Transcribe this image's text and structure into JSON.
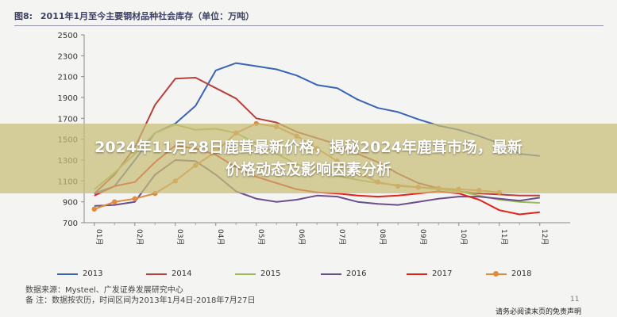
{
  "header": {
    "figure_label": "图8:",
    "figure_title": "2011年1月至今主要钢材品种社会库存（单位：万吨）"
  },
  "banner": {
    "line1": "2024年11月28日鹿茸最新价格，揭秘2024年鹿茸市场，最新",
    "line2": "价格动态及影响因素分析"
  },
  "chart_data": {
    "type": "line",
    "ylim": [
      700,
      2500
    ],
    "yticks": [
      "700",
      "900",
      "1100",
      "1300",
      "1500",
      "1700",
      "1900",
      "2100",
      "2300",
      "2500"
    ],
    "x_labels": [
      "01月",
      "02月",
      "03月",
      "04月",
      "05月",
      "06月",
      "07月",
      "08月",
      "09月",
      "10月",
      "11月",
      "12月"
    ],
    "series": [
      {
        "name": "2013",
        "color": "#3a64b8",
        "marker": false,
        "x": [
          1,
          1.5,
          2,
          2.5,
          3,
          3.5,
          4,
          4.5,
          5,
          5.5,
          6,
          6.5,
          7,
          7.5,
          8,
          8.5,
          9,
          9.5,
          10,
          10.5,
          11,
          11.5,
          12
        ],
        "values": [
          980,
          1050,
          1300,
          1560,
          1650,
          1820,
          2160,
          2230,
          2200,
          2170,
          2110,
          2020,
          1990,
          1880,
          1800,
          1760,
          1690,
          1630,
          1590,
          1530,
          1460,
          1360,
          1340
        ]
      },
      {
        "name": "2014",
        "color": "#b5413a",
        "marker": false,
        "x": [
          1,
          1.5,
          2,
          2.5,
          3,
          3.5,
          4,
          4.5,
          5,
          5.5,
          6,
          6.5,
          7,
          7.5,
          8,
          8.5,
          9,
          9.5,
          10,
          10.5,
          11,
          11.5,
          12
        ],
        "values": [
          980,
          1160,
          1420,
          1830,
          2080,
          2090,
          1990,
          1890,
          1700,
          1660,
          1570,
          1510,
          1450,
          1360,
          1280,
          1170,
          1080,
          1030,
          1000,
          980,
          970,
          960,
          960
        ]
      },
      {
        "name": "2015",
        "color": "#9bbb59",
        "marker": false,
        "x": [
          1,
          1.5,
          2,
          2.5,
          3,
          3.5,
          4,
          4.5,
          5,
          5.5,
          6,
          6.5,
          7,
          7.5,
          8,
          8.5,
          9,
          9.5,
          10,
          10.5,
          11,
          11.5,
          12
        ],
        "values": [
          1020,
          1180,
          1360,
          1560,
          1640,
          1590,
          1600,
          1560,
          1460,
          1360,
          1260,
          1200,
          1150,
          1110,
          1080,
          1060,
          1040,
          1020,
          1000,
          960,
          920,
          900,
          890
        ]
      },
      {
        "name": "2016",
        "color": "#6a4f8c",
        "marker": false,
        "x": [
          1,
          1.5,
          2,
          2.5,
          3,
          3.5,
          4,
          4.5,
          5,
          5.5,
          6,
          6.5,
          7,
          7.5,
          8,
          8.5,
          9,
          9.5,
          10,
          10.5,
          11,
          11.5,
          12
        ],
        "values": [
          860,
          870,
          900,
          1160,
          1300,
          1290,
          1160,
          1000,
          930,
          900,
          920,
          960,
          950,
          900,
          880,
          870,
          900,
          930,
          950,
          950,
          930,
          910,
          940
        ]
      },
      {
        "name": "2017",
        "color": "#e2231a",
        "marker": false,
        "x": [
          1,
          1.5,
          2,
          2.5,
          3,
          3.5,
          4,
          4.5,
          5,
          5.5,
          6,
          6.5,
          7,
          7.5,
          8,
          8.5,
          9,
          9.5,
          10,
          10.5,
          11,
          11.5,
          12
        ],
        "values": [
          960,
          1050,
          1090,
          1280,
          1440,
          1410,
          1350,
          1230,
          1140,
          1080,
          1020,
          990,
          980,
          960,
          950,
          960,
          980,
          1000,
          980,
          920,
          820,
          780,
          800
        ]
      },
      {
        "name": "2018",
        "color": "#e08a3c",
        "marker": true,
        "x": [
          1,
          1.5,
          2,
          2.5,
          3,
          3.5,
          4,
          4.5,
          5,
          5.5,
          6,
          6.5,
          7,
          7.5,
          8,
          8.5,
          9,
          9.5,
          10,
          10.5,
          11
        ],
        "values": [
          830,
          900,
          930,
          980,
          1100,
          1250,
          1380,
          1560,
          1650,
          1620,
          1530,
          1410,
          1290,
          1180,
          1090,
          1050,
          1040,
          1030,
          1020,
          1010,
          990
        ]
      }
    ]
  },
  "notes": {
    "source": "数据来源：Mysteel、广发证券发展研究中心",
    "remark": "备 注：数据按农历，时间区间为2013年1月4日-2018年7月27日"
  },
  "footer": {
    "page_number": "11",
    "watermark": "请务必阅读末页的免责声明"
  }
}
